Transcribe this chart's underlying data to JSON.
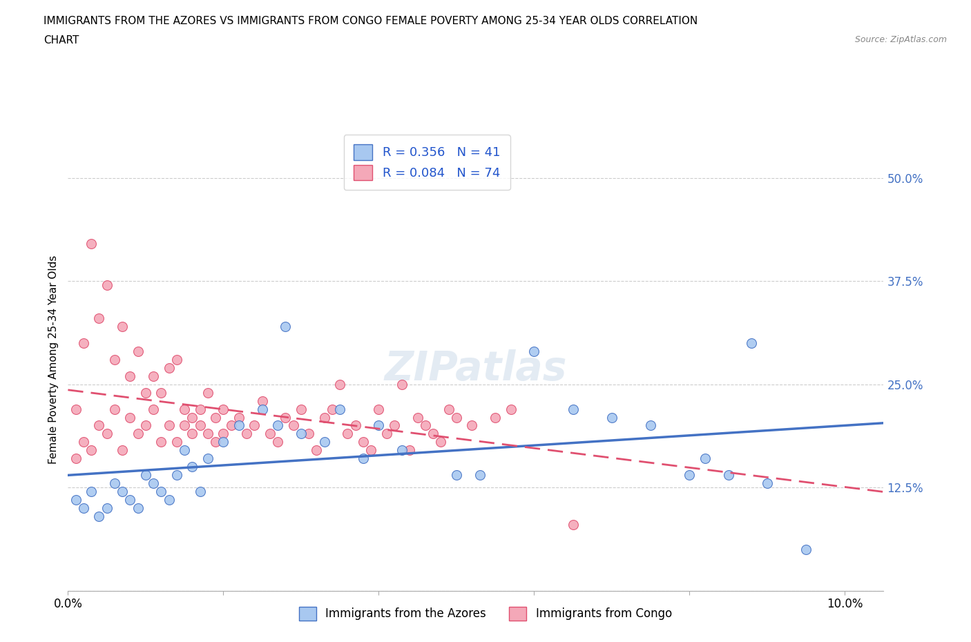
{
  "title_line1": "IMMIGRANTS FROM THE AZORES VS IMMIGRANTS FROM CONGO FEMALE POVERTY AMONG 25-34 YEAR OLDS CORRELATION",
  "title_line2": "CHART",
  "source_text": "Source: ZipAtlas.com",
  "ylabel": "Female Poverty Among 25-34 Year Olds",
  "xlim": [
    0.0,
    0.105
  ],
  "ylim": [
    0.0,
    0.56
  ],
  "ytick_positions": [
    0.0,
    0.125,
    0.25,
    0.375,
    0.5
  ],
  "ytick_labels": [
    "",
    "12.5%",
    "25.0%",
    "37.5%",
    "50.0%"
  ],
  "xtick_positions": [
    0.0,
    0.02,
    0.04,
    0.06,
    0.08,
    0.1
  ],
  "xticklabels": [
    "0.0%",
    "",
    "",
    "",
    "",
    "10.0%"
  ],
  "azores_R": 0.356,
  "azores_N": 41,
  "congo_R": 0.084,
  "congo_N": 74,
  "azores_color": "#a8c8f0",
  "congo_color": "#f4a8b8",
  "azores_line_color": "#4472c4",
  "congo_line_color": "#e05070",
  "legend_text_color": "#2255cc",
  "azores_x": [
    0.001,
    0.002,
    0.003,
    0.004,
    0.005,
    0.006,
    0.007,
    0.008,
    0.009,
    0.01,
    0.011,
    0.012,
    0.013,
    0.014,
    0.015,
    0.016,
    0.017,
    0.018,
    0.02,
    0.022,
    0.025,
    0.027,
    0.028,
    0.03,
    0.033,
    0.035,
    0.038,
    0.04,
    0.043,
    0.05,
    0.053,
    0.06,
    0.065,
    0.07,
    0.075,
    0.08,
    0.082,
    0.085,
    0.088,
    0.09,
    0.095
  ],
  "azores_y": [
    0.11,
    0.1,
    0.12,
    0.09,
    0.1,
    0.13,
    0.12,
    0.11,
    0.1,
    0.14,
    0.13,
    0.12,
    0.11,
    0.14,
    0.17,
    0.15,
    0.12,
    0.16,
    0.18,
    0.2,
    0.22,
    0.2,
    0.32,
    0.19,
    0.18,
    0.22,
    0.16,
    0.2,
    0.17,
    0.14,
    0.14,
    0.29,
    0.22,
    0.21,
    0.2,
    0.14,
    0.16,
    0.14,
    0.3,
    0.13,
    0.05
  ],
  "congo_x": [
    0.001,
    0.001,
    0.002,
    0.002,
    0.003,
    0.003,
    0.004,
    0.004,
    0.005,
    0.005,
    0.006,
    0.006,
    0.007,
    0.007,
    0.008,
    0.008,
    0.009,
    0.009,
    0.01,
    0.01,
    0.011,
    0.011,
    0.012,
    0.012,
    0.013,
    0.013,
    0.014,
    0.014,
    0.015,
    0.015,
    0.016,
    0.016,
    0.017,
    0.017,
    0.018,
    0.018,
    0.019,
    0.019,
    0.02,
    0.02,
    0.021,
    0.022,
    0.023,
    0.024,
    0.025,
    0.026,
    0.027,
    0.028,
    0.029,
    0.03,
    0.031,
    0.032,
    0.033,
    0.034,
    0.035,
    0.036,
    0.037,
    0.038,
    0.039,
    0.04,
    0.041,
    0.042,
    0.043,
    0.044,
    0.045,
    0.046,
    0.047,
    0.048,
    0.049,
    0.05,
    0.052,
    0.055,
    0.057,
    0.065
  ],
  "congo_y": [
    0.16,
    0.22,
    0.18,
    0.3,
    0.17,
    0.42,
    0.2,
    0.33,
    0.19,
    0.37,
    0.22,
    0.28,
    0.17,
    0.32,
    0.21,
    0.26,
    0.19,
    0.29,
    0.2,
    0.24,
    0.22,
    0.26,
    0.18,
    0.24,
    0.2,
    0.27,
    0.18,
    0.28,
    0.2,
    0.22,
    0.19,
    0.21,
    0.2,
    0.22,
    0.19,
    0.24,
    0.18,
    0.21,
    0.19,
    0.22,
    0.2,
    0.21,
    0.19,
    0.2,
    0.23,
    0.19,
    0.18,
    0.21,
    0.2,
    0.22,
    0.19,
    0.17,
    0.21,
    0.22,
    0.25,
    0.19,
    0.2,
    0.18,
    0.17,
    0.22,
    0.19,
    0.2,
    0.25,
    0.17,
    0.21,
    0.2,
    0.19,
    0.18,
    0.22,
    0.21,
    0.2,
    0.21,
    0.22,
    0.08
  ]
}
